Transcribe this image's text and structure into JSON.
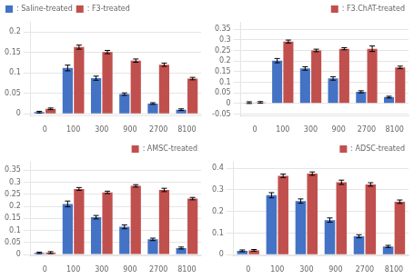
{
  "chart_data": [
    {
      "type": "bar",
      "categories": [
        "0",
        "100",
        "300",
        "900",
        "2700",
        "8100"
      ],
      "series": [
        {
          "name": ": Saline-treated",
          "color": "#4472C4",
          "values": [
            0.004,
            0.112,
            0.087,
            0.048,
            0.025,
            0.01
          ],
          "errors": [
            0.002,
            0.007,
            0.005,
            0.003,
            0.002,
            0.002
          ]
        },
        {
          "name": ": F3-treated",
          "color": "#C0504D",
          "values": [
            0.012,
            0.163,
            0.151,
            0.13,
            0.12,
            0.086
          ],
          "errors": [
            0.002,
            0.005,
            0.004,
            0.004,
            0.004,
            0.003
          ]
        }
      ],
      "ylim": [
        -0.005,
        0.225
      ],
      "yticks": [
        0,
        0.05,
        0.1,
        0.15,
        0.2
      ],
      "grid": true,
      "legend": "upper left"
    },
    {
      "type": "bar",
      "categories": [
        "0",
        "100",
        "300",
        "900",
        "2700",
        "8100"
      ],
      "series": [
        {
          "color": "#4472C4",
          "values": [
            0.004,
            0.202,
            0.165,
            0.118,
            0.055,
            0.03
          ],
          "errors": [
            0.004,
            0.01,
            0.008,
            0.008,
            0.005,
            0.004
          ]
        },
        {
          "name": ": F3.ChAT-treated",
          "color": "#C0504D",
          "values": [
            0.005,
            0.292,
            0.25,
            0.258,
            0.258,
            0.17
          ],
          "errors": [
            0.004,
            0.007,
            0.006,
            0.005,
            0.013,
            0.006
          ]
        }
      ],
      "ylim": [
        -0.058,
        0.385
      ],
      "yticks": [
        -0.05,
        0,
        0.05,
        0.1,
        0.15,
        0.2,
        0.25,
        0.3,
        0.35
      ],
      "grid": true,
      "legend": "upper right"
    },
    {
      "type": "bar",
      "categories": [
        "0",
        "100",
        "300",
        "900",
        "2700",
        "8100"
      ],
      "series": [
        {
          "color": "#4472C4",
          "values": [
            0.007,
            0.21,
            0.155,
            0.115,
            0.063,
            0.027
          ],
          "errors": [
            0.003,
            0.012,
            0.007,
            0.008,
            0.005,
            0.004
          ]
        },
        {
          "name": ": AMSC-treated",
          "color": "#C0504D",
          "values": [
            0.008,
            0.272,
            0.258,
            0.285,
            0.268,
            0.232
          ],
          "errors": [
            0.004,
            0.006,
            0.005,
            0.005,
            0.007,
            0.005
          ]
        }
      ],
      "ylim": [
        -0.005,
        0.385
      ],
      "yticks": [
        0,
        0.05,
        0.1,
        0.15,
        0.2,
        0.25,
        0.3,
        0.35
      ],
      "grid": true,
      "legend": "upper right"
    },
    {
      "type": "bar",
      "categories": [
        "0",
        "100",
        "300",
        "900",
        "2700",
        "8100"
      ],
      "series": [
        {
          "color": "#4472C4",
          "values": [
            0.018,
            0.275,
            0.248,
            0.16,
            0.085,
            0.038
          ],
          "errors": [
            0.004,
            0.012,
            0.01,
            0.01,
            0.007,
            0.005
          ]
        },
        {
          "name": ": ADSC-treated",
          "color": "#C0504D",
          "values": [
            0.02,
            0.365,
            0.375,
            0.335,
            0.325,
            0.245
          ],
          "errors": [
            0.004,
            0.008,
            0.008,
            0.01,
            0.008,
            0.008
          ]
        }
      ],
      "ylim": [
        -0.005,
        0.43
      ],
      "yticks": [
        0,
        0.1,
        0.2,
        0.3,
        0.4
      ],
      "grid": true,
      "legend": "upper right"
    }
  ]
}
